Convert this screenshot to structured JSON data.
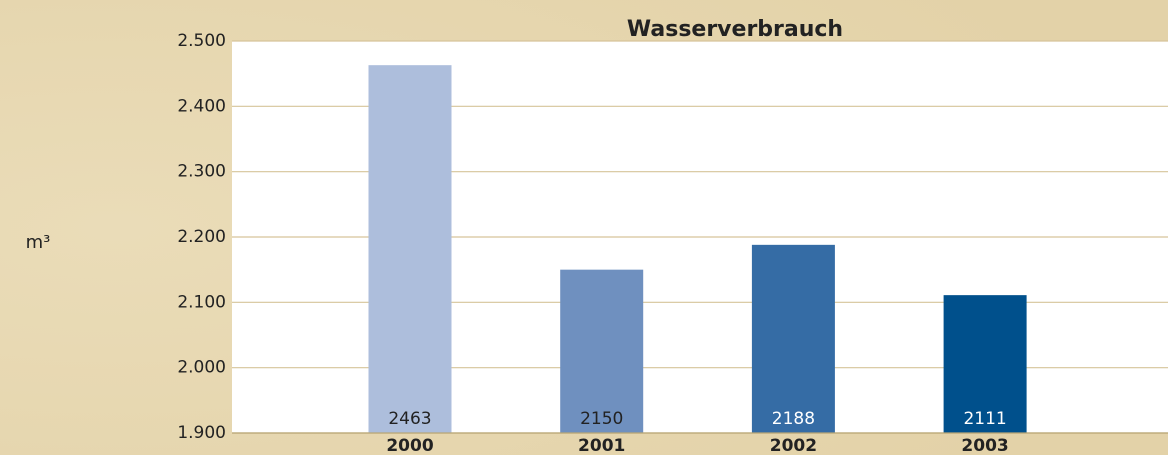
{
  "chart_data": {
    "type": "bar",
    "title": "Wasserverbrauch",
    "y_label": "m³",
    "categories": [
      "2000",
      "2001",
      "2002",
      "2003"
    ],
    "values": [
      2463,
      2150,
      2188,
      2111
    ],
    "colors": [
      "#adbedc",
      "#6f90bf",
      "#356ca5",
      "#00508c"
    ],
    "ylim": [
      1900,
      2500
    ],
    "yticks": [
      {
        "value": 1900,
        "label": "1.900"
      },
      {
        "value": 2000,
        "label": "2.000"
      },
      {
        "value": 2100,
        "label": "2.100"
      },
      {
        "value": 2200,
        "label": "2.200"
      },
      {
        "value": 2300,
        "label": "2.300"
      },
      {
        "value": 2400,
        "label": "2.400"
      },
      {
        "value": 2500,
        "label": "2.500"
      }
    ],
    "grid": true
  }
}
